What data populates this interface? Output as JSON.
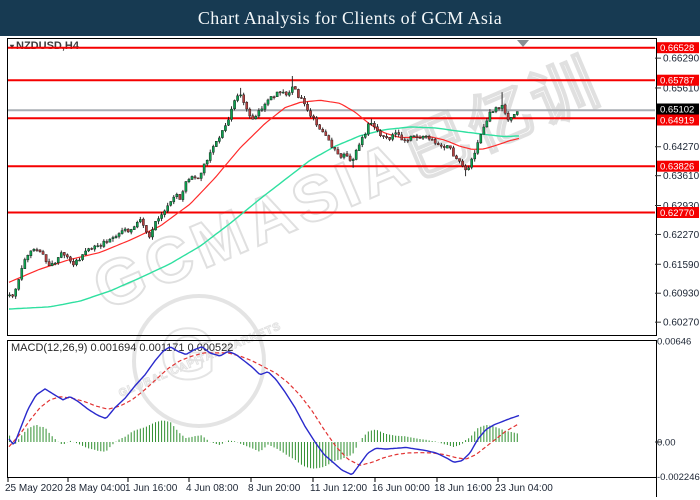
{
  "title": "Chart Analysis for Clients of GCM Asia",
  "symbol_label": "NZDUSD,H4",
  "symbol_marker": "▾",
  "macd_header": "MACD(12,26,9) 0.001694 0.001171 0.000522",
  "watermark": {
    "text": "GCMASIA",
    "cjk": "巴亿训",
    "stamp": "GLOBAL CAPITAL MARKETS",
    "stamp_letter": "G"
  },
  "colors": {
    "titlebar_bg": "#173a52",
    "titlebar_fg": "#f4f8fa",
    "bull": "#0c9f4e",
    "bear": "#b34040",
    "wick": "#1a1a1a",
    "ma_fast": "#ff2a2a",
    "ma_slow": "#2fe0a0",
    "level": "#f50000",
    "level_tag_fg": "#ffffff",
    "current_line": "#a9aeb3",
    "current_tag_bg": "#000000",
    "macd_line": "#2929cc",
    "macd_signal": "#e23333",
    "macd_hist": "#2f8f2f",
    "axis_text": "#1b2433",
    "watermark": "#d9d9d9",
    "border": "#000000",
    "shift_marker": "#8a8f94"
  },
  "chart_data": {
    "type": "candlestick",
    "symbol": "NZDUSD",
    "timeframe": "H4",
    "time_axis": {
      "labels": [
        "25 May 2020",
        "28 May 04:00",
        "1 Jun 16:00",
        "4 Jun 08:00",
        "8 Jun 20:00",
        "11 Jun 12:00",
        "16 Jun 00:00",
        "18 Jun 16:00",
        "23 Jun 04:00"
      ],
      "x": [
        5,
        65,
        125,
        186,
        248,
        310,
        372,
        434,
        495
      ]
    },
    "price_axis": {
      "ticks": [
        0.6629,
        0.6561,
        0.6427,
        0.6361,
        0.6293,
        0.6227,
        0.6159,
        0.6093,
        0.6027
      ]
    },
    "levels": [
      0.66528,
      0.65787,
      0.64919,
      0.63826,
      0.6277
    ],
    "current_price": 0.65102,
    "current_price_label": "0.65102",
    "bars": {
      "count": 168,
      "x_start": 9.6,
      "x_step": 3.04,
      "close_anchors": [
        [
          9,
          0.6088
        ],
        [
          14,
          0.609
        ],
        [
          17,
          0.6106
        ],
        [
          21,
          0.6143
        ],
        [
          27,
          0.618
        ],
        [
          32,
          0.6192
        ],
        [
          38,
          0.6197
        ],
        [
          44,
          0.6176
        ],
        [
          50,
          0.615
        ],
        [
          56,
          0.6168
        ],
        [
          62,
          0.6183
        ],
        [
          68,
          0.6174
        ],
        [
          74,
          0.6158
        ],
        [
          80,
          0.6172
        ],
        [
          88,
          0.6192
        ],
        [
          96,
          0.6201
        ],
        [
          104,
          0.6208
        ],
        [
          112,
          0.6222
        ],
        [
          118,
          0.6228
        ],
        [
          124,
          0.6241
        ],
        [
          130,
          0.6233
        ],
        [
          136,
          0.6252
        ],
        [
          142,
          0.6262
        ],
        [
          146,
          0.623
        ],
        [
          150,
          0.6216
        ],
        [
          156,
          0.6258
        ],
        [
          162,
          0.627
        ],
        [
          168,
          0.6292
        ],
        [
          174,
          0.6318
        ],
        [
          180,
          0.631
        ],
        [
          186,
          0.6345
        ],
        [
          192,
          0.636
        ],
        [
          198,
          0.6352
        ],
        [
          204,
          0.6388
        ],
        [
          210,
          0.6412
        ],
        [
          216,
          0.6438
        ],
        [
          222,
          0.6462
        ],
        [
          228,
          0.6488
        ],
        [
          234,
          0.653
        ],
        [
          240,
          0.6548
        ],
        [
          246,
          0.6518
        ],
        [
          252,
          0.6486
        ],
        [
          258,
          0.6506
        ],
        [
          264,
          0.6522
        ],
        [
          272,
          0.6542
        ],
        [
          280,
          0.6552
        ],
        [
          288,
          0.6548
        ],
        [
          293,
          0.6566
        ],
        [
          298,
          0.6545
        ],
        [
          304,
          0.6525
        ],
        [
          310,
          0.6502
        ],
        [
          316,
          0.6482
        ],
        [
          322,
          0.6462
        ],
        [
          328,
          0.644
        ],
        [
          334,
          0.642
        ],
        [
          340,
          0.6405
        ],
        [
          346,
          0.6413
        ],
        [
          352,
          0.6392
        ],
        [
          358,
          0.6426
        ],
        [
          364,
          0.6452
        ],
        [
          370,
          0.649
        ],
        [
          376,
          0.647
        ],
        [
          382,
          0.6452
        ],
        [
          388,
          0.6445
        ],
        [
          394,
          0.6458
        ],
        [
          400,
          0.6448
        ],
        [
          406,
          0.644
        ],
        [
          412,
          0.6452
        ],
        [
          418,
          0.6445
        ],
        [
          424,
          0.645
        ],
        [
          430,
          0.6442
        ],
        [
          436,
          0.6432
        ],
        [
          442,
          0.6422
        ],
        [
          448,
          0.6428
        ],
        [
          454,
          0.6408
        ],
        [
          460,
          0.639
        ],
        [
          466,
          0.6372
        ],
        [
          472,
          0.6396
        ],
        [
          478,
          0.6436
        ],
        [
          484,
          0.6468
        ],
        [
          490,
          0.6502
        ],
        [
          496,
          0.6512
        ],
        [
          502,
          0.6518
        ],
        [
          508,
          0.6488
        ],
        [
          513,
          0.6499
        ],
        [
          519,
          0.65102
        ]
      ],
      "spikes": [
        [
          21,
          0.0007,
          0
        ],
        [
          240,
          0.0009,
          0
        ],
        [
          293,
          0.0024,
          0
        ],
        [
          352,
          0,
          0.0016
        ],
        [
          370,
          0.001,
          0
        ],
        [
          466,
          0,
          0.0013
        ],
        [
          503,
          0.0026,
          0
        ]
      ]
    },
    "ma_fast_path": [
      [
        9,
        0.6118
      ],
      [
        40,
        0.6148
      ],
      [
        70,
        0.617
      ],
      [
        100,
        0.6186
      ],
      [
        130,
        0.6214
      ],
      [
        160,
        0.6246
      ],
      [
        190,
        0.6296
      ],
      [
        215,
        0.6356
      ],
      [
        240,
        0.6424
      ],
      [
        265,
        0.648
      ],
      [
        285,
        0.6516
      ],
      [
        300,
        0.6528
      ],
      [
        320,
        0.6533
      ],
      [
        340,
        0.6526
      ],
      [
        355,
        0.6506
      ],
      [
        370,
        0.6478
      ],
      [
        385,
        0.6458
      ],
      [
        400,
        0.6448
      ],
      [
        415,
        0.6448
      ],
      [
        430,
        0.645
      ],
      [
        445,
        0.6442
      ],
      [
        460,
        0.6428
      ],
      [
        472,
        0.6421
      ],
      [
        484,
        0.6422
      ],
      [
        496,
        0.643
      ],
      [
        510,
        0.6441
      ],
      [
        521,
        0.6447
      ]
    ],
    "ma_slow_path": [
      [
        9,
        0.6057
      ],
      [
        50,
        0.6062
      ],
      [
        80,
        0.6075
      ],
      [
        110,
        0.6098
      ],
      [
        140,
        0.6128
      ],
      [
        170,
        0.616
      ],
      [
        200,
        0.62
      ],
      [
        230,
        0.6252
      ],
      [
        260,
        0.6308
      ],
      [
        285,
        0.6352
      ],
      [
        310,
        0.6396
      ],
      [
        335,
        0.6428
      ],
      [
        360,
        0.6452
      ],
      [
        385,
        0.6466
      ],
      [
        410,
        0.6472
      ],
      [
        435,
        0.647
      ],
      [
        460,
        0.6462
      ],
      [
        485,
        0.6455
      ],
      [
        505,
        0.645
      ],
      [
        521,
        0.6452
      ]
    ],
    "macd": {
      "label": "MACD(12,26,9)",
      "macd_value": 0.001694,
      "signal_value": 0.001171,
      "histogram_value": 0.000522,
      "axis_max": 0.00646,
      "axis_max_label": "0.00646",
      "axis_zero_label": "0.00",
      "axis_min": -0.002246,
      "axis_min_label": "-0.002246",
      "macd_path": [
        [
          9,
          0.0002
        ],
        [
          14,
          -0.0002
        ],
        [
          20,
          0.0008
        ],
        [
          28,
          0.0021
        ],
        [
          36,
          0.003
        ],
        [
          45,
          0.0034
        ],
        [
          55,
          0.003
        ],
        [
          63,
          0.0027
        ],
        [
          70,
          0.0029
        ],
        [
          78,
          0.0026
        ],
        [
          88,
          0.0021
        ],
        [
          98,
          0.0017
        ],
        [
          106,
          0.0015
        ],
        [
          115,
          0.0022
        ],
        [
          125,
          0.0028
        ],
        [
          135,
          0.0036
        ],
        [
          145,
          0.0043
        ],
        [
          155,
          0.0052
        ],
        [
          163,
          0.0058
        ],
        [
          170,
          0.0061
        ],
        [
          178,
          0.0058
        ],
        [
          186,
          0.0056
        ],
        [
          194,
          0.0059
        ],
        [
          202,
          0.0061
        ],
        [
          210,
          0.0057
        ],
        [
          220,
          0.0055
        ],
        [
          228,
          0.0058
        ],
        [
          236,
          0.0056
        ],
        [
          244,
          0.0052
        ],
        [
          252,
          0.0048
        ],
        [
          260,
          0.0043
        ],
        [
          268,
          0.0045
        ],
        [
          276,
          0.004
        ],
        [
          285,
          0.0032
        ],
        [
          295,
          0.0022
        ],
        [
          305,
          0.001
        ],
        [
          315,
          0.0
        ],
        [
          324,
          -0.0008
        ],
        [
          333,
          -0.0013
        ],
        [
          342,
          -0.0018
        ],
        [
          352,
          -0.0021
        ],
        [
          360,
          -0.0014
        ],
        [
          368,
          -0.0007
        ],
        [
          376,
          -0.0004
        ],
        [
          386,
          -0.00045
        ],
        [
          396,
          -0.0004
        ],
        [
          406,
          -0.00035
        ],
        [
          416,
          -0.00045
        ],
        [
          426,
          -0.00055
        ],
        [
          436,
          -0.0007
        ],
        [
          446,
          -0.001
        ],
        [
          454,
          -0.0013
        ],
        [
          462,
          -0.0012
        ],
        [
          470,
          -0.0007
        ],
        [
          478,
          0.0002
        ],
        [
          486,
          0.0008
        ],
        [
          494,
          0.0011
        ],
        [
          502,
          0.0013
        ],
        [
          510,
          0.0015
        ],
        [
          519,
          0.001694
        ]
      ],
      "signal_path": [
        [
          9,
          -0.0003
        ],
        [
          20,
          0.0005
        ],
        [
          30,
          0.0014
        ],
        [
          40,
          0.0022
        ],
        [
          50,
          0.0027
        ],
        [
          60,
          0.0029
        ],
        [
          72,
          0.0028
        ],
        [
          84,
          0.0026
        ],
        [
          96,
          0.0023
        ],
        [
          108,
          0.0021
        ],
        [
          120,
          0.0023
        ],
        [
          132,
          0.0027
        ],
        [
          144,
          0.0033
        ],
        [
          156,
          0.004
        ],
        [
          168,
          0.0047
        ],
        [
          180,
          0.0052
        ],
        [
          192,
          0.0055
        ],
        [
          204,
          0.0057
        ],
        [
          216,
          0.0057
        ],
        [
          228,
          0.0057
        ],
        [
          240,
          0.0055
        ],
        [
          252,
          0.0052
        ],
        [
          264,
          0.0048
        ],
        [
          276,
          0.0044
        ],
        [
          288,
          0.0038
        ],
        [
          300,
          0.003
        ],
        [
          312,
          0.002
        ],
        [
          324,
          0.0008
        ],
        [
          336,
          -0.0003
        ],
        [
          348,
          -0.0011
        ],
        [
          360,
          -0.0015
        ],
        [
          372,
          -0.0013
        ],
        [
          384,
          -0.001
        ],
        [
          396,
          -0.0008
        ],
        [
          408,
          -0.0007
        ],
        [
          420,
          -0.00068
        ],
        [
          432,
          -0.0007
        ],
        [
          444,
          -0.0008
        ],
        [
          456,
          -0.001
        ],
        [
          466,
          -0.0011
        ],
        [
          476,
          -0.0008
        ],
        [
          486,
          -0.0003
        ],
        [
          496,
          0.0002
        ],
        [
          506,
          0.0007
        ],
        [
          519,
          0.001171
        ]
      ]
    }
  }
}
